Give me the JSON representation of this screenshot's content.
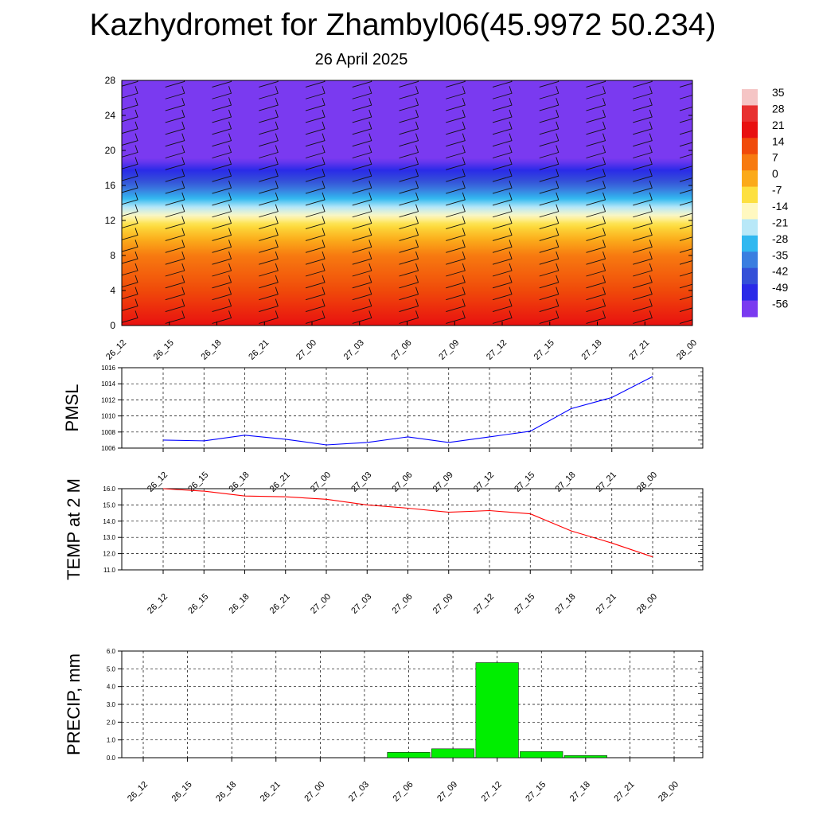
{
  "page": {
    "title": "Kazhydromet for Zhambyl06(45.9972 50.234)",
    "subtitle": "26 April 2025"
  },
  "chart_data": [
    {
      "type": "heatmap",
      "title": "",
      "xlabel": "",
      "ylabel": "",
      "x": [
        "26_12",
        "26_15",
        "26_18",
        "26_21",
        "27_00",
        "27_03",
        "27_06",
        "27_09",
        "27_12",
        "27_15",
        "27_18",
        "27_21",
        "28_00"
      ],
      "yticks": [
        0,
        4,
        8,
        12,
        16,
        20,
        24,
        28
      ],
      "ylim": [
        0,
        28
      ],
      "colorbar": {
        "labels": [
          "35",
          "28",
          "21",
          "14",
          "7",
          "0",
          "-7",
          "-14",
          "-21",
          "-28",
          "-35",
          "-42",
          "-49",
          "-56"
        ],
        "colors": [
          "#f5c5c5",
          "#e83030",
          "#e81010",
          "#f04a0a",
          "#f77a10",
          "#fbaa1a",
          "#fde040",
          "#fff8c0",
          "#b8e8f8",
          "#30b8f0",
          "#3a7ee0",
          "#3450d8",
          "#2a2ae8",
          "#7a3af0"
        ]
      },
      "temperature_profile": [
        {
          "level": 0,
          "temp": 21
        },
        {
          "level": 4,
          "temp": 14
        },
        {
          "level": 8,
          "temp": 7
        },
        {
          "level": 11.5,
          "temp": -7
        },
        {
          "level": 12.5,
          "temp": -14
        },
        {
          "level": 14.5,
          "temp": -28
        },
        {
          "level": 16.5,
          "temp": -42
        },
        {
          "level": 19,
          "temp": -56
        },
        {
          "level": 28,
          "temp": -56
        }
      ],
      "wind_barbs": true
    },
    {
      "type": "line",
      "ylabel": "PMSL",
      "x": [
        "26_12",
        "26_15",
        "26_18",
        "26_21",
        "27_00",
        "27_03",
        "27_06",
        "27_09",
        "27_12",
        "27_15",
        "27_18",
        "27_21",
        "28_00"
      ],
      "series": [
        {
          "values": [
            1007.0,
            1006.9,
            1007.6,
            1007.1,
            1006.4,
            1006.7,
            1007.4,
            1006.7,
            1007.4,
            1008.1,
            1010.9,
            1012.3,
            1014.9
          ]
        }
      ],
      "ylim": [
        1006,
        1016
      ],
      "yticks": [
        "1006",
        "1008",
        "1010",
        "1012",
        "1014",
        "1016"
      ],
      "color": "#0000ff",
      "grid": true
    },
    {
      "type": "line",
      "ylabel": "TEMP at 2 M",
      "x": [
        "26_12",
        "26_15",
        "26_18",
        "26_21",
        "27_00",
        "27_03",
        "27_06",
        "27_09",
        "27_12",
        "27_15",
        "27_18",
        "27_21",
        "28_00"
      ],
      "series": [
        {
          "values": [
            16.0,
            15.85,
            15.55,
            15.5,
            15.35,
            15.0,
            14.8,
            14.55,
            14.65,
            14.45,
            13.4,
            12.65,
            11.8
          ]
        }
      ],
      "ylim": [
        11,
        16
      ],
      "yticks": [
        "11.0",
        "12.0",
        "13.0",
        "14.0",
        "15.0",
        "16.0"
      ],
      "color": "#ff0000",
      "grid": true
    },
    {
      "type": "bar",
      "ylabel": "PRECIP, mm",
      "categories": [
        "26_12",
        "26_15",
        "26_18",
        "26_21",
        "27_00",
        "27_03",
        "27_06",
        "27_09",
        "27_12",
        "27_15",
        "27_18",
        "27_21",
        "28_00"
      ],
      "values": [
        0,
        0,
        0,
        0,
        0,
        0,
        0.3,
        0.5,
        5.35,
        0.35,
        0.12,
        0,
        0
      ],
      "ylim": [
        0,
        6
      ],
      "yticks": [
        "0.0",
        "1.0",
        "2.0",
        "3.0",
        "4.0",
        "5.0",
        "6.0"
      ],
      "color": "#00ee00",
      "grid": true
    }
  ]
}
